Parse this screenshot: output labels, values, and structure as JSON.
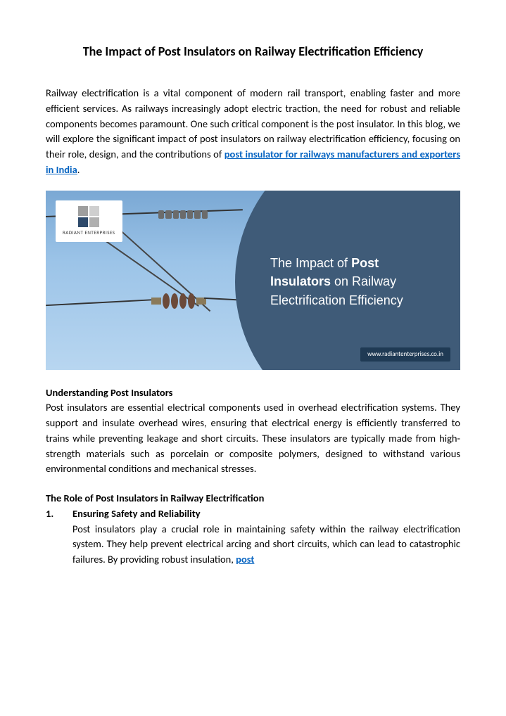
{
  "title": "The Impact of Post Insulators on Railway Electrification Efficiency",
  "intro_text": "Railway electrification is a vital component of modern rail transport, enabling faster and more efficient services.  As railways increasingly adopt electric traction, the need for robust and reliable components becomes paramount.  One such critical component is the post insulator.  In this blog, we will explore the significant impact of post insulators on railway electrification efficiency, focusing on their role, design, and the contributions of ",
  "intro_link": "post insulator for railways manufacturers and exporters in India",
  "intro_end": ".",
  "hero": {
    "logo_label": "RADIANT ENTERPRISES",
    "circle_line1": "The Impact of ",
    "circle_b1": "Post Insulators",
    "circle_mid": " on Railway Electrification Efficiency",
    "url": "www.radiantenterprises.co.in",
    "colors": {
      "sky_top": "#7aa8d4",
      "circle_bg": "#3f5b78",
      "url_bg": "#1f3a54"
    }
  },
  "sec1_head": "Understanding Post Insulators",
  "sec1_body": "Post insulators are essential electrical components used in overhead electrification systems.  They support and insulate overhead wires, ensuring that electrical energy is efficiently transferred to trains while preventing leakage and short circuits.  These insulators are typically made from high-strength materials such as porcelain or composite polymers, designed to withstand various environmental conditions and mechanical stresses.",
  "sec2_head": "The Role of Post Insulators in Railway Electrification",
  "item1_num": "1.",
  "item1_title": "Ensuring Safety and Reliability",
  "item1_body_a": "Post insulators play a crucial role in maintaining safety within the railway electrification system.  They help prevent electrical arcing and short circuits, which can lead to catastrophic failures.  By providing robust insulation, ",
  "item1_link": "post"
}
